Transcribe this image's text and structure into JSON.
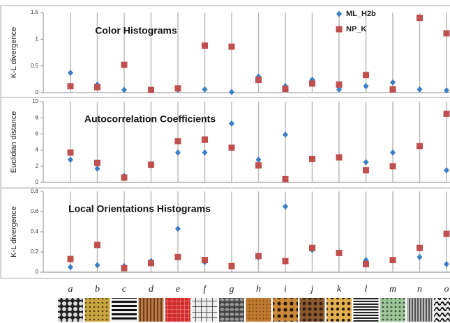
{
  "chart_data": [
    {
      "type": "dot",
      "title": "Color Histograms",
      "y_label": "K-L divergence",
      "legend": "top-right",
      "ylim": [
        0,
        1.5
      ],
      "yticks": [
        0,
        0.5,
        1,
        1.5
      ],
      "series": [
        {
          "name": "ML_H2b",
          "color": "#3b7dc4",
          "marker": "diamond",
          "values": [
            0.37,
            0.15,
            0.05,
            0.05,
            0.05,
            0.06,
            0.01,
            0.3,
            0.12,
            0.24,
            0.06,
            0.12,
            0.19,
            0.06,
            0.04
          ]
        },
        {
          "name": "NP_K",
          "color": "#c0504d",
          "marker": "square",
          "values": [
            0.12,
            0.1,
            0.52,
            0.05,
            0.08,
            0.88,
            0.86,
            0.24,
            0.07,
            0.17,
            0.15,
            0.33,
            0.06,
            1.4,
            1.11
          ]
        }
      ]
    },
    {
      "type": "dot",
      "title": "Autocorrelation Coefficients",
      "y_label": "Euclidian distance",
      "ylim": [
        0,
        10
      ],
      "yticks": [
        0,
        2,
        4,
        6,
        8,
        10
      ],
      "series": [
        {
          "color": "#3b7dc4",
          "marker": "diamond",
          "values": [
            2.8,
            1.7,
            0.8,
            2.1,
            3.7,
            3.7,
            7.3,
            2.8,
            5.9,
            2.9,
            3.1,
            2.5,
            3.7,
            4.5,
            1.5
          ]
        },
        {
          "color": "#c0504d",
          "marker": "square",
          "values": [
            3.7,
            2.4,
            0.6,
            2.2,
            5.1,
            5.3,
            4.3,
            2.1,
            0.4,
            2.9,
            3.1,
            1.5,
            2.0,
            4.5,
            8.5
          ]
        }
      ]
    },
    {
      "type": "dot",
      "title": "Local Orientations Histograms",
      "y_label": "K-L divergence",
      "ylim": [
        0,
        0.8
      ],
      "yticks": [
        0,
        0.2,
        0.4,
        0.6,
        0.8
      ],
      "categories": [
        "a",
        "b",
        "c",
        "d",
        "e",
        "f",
        "g",
        "h",
        "i",
        "j",
        "k",
        "l",
        "m",
        "n",
        "o"
      ],
      "series": [
        {
          "color": "#3b7dc4",
          "marker": "diamond",
          "values": [
            0.05,
            0.07,
            0.06,
            0.11,
            0.43,
            0.1,
            0.06,
            0.15,
            0.65,
            0.22,
            0.19,
            0.12,
            0.12,
            0.15,
            0.08
          ]
        },
        {
          "color": "#c0504d",
          "marker": "square",
          "values": [
            0.13,
            0.27,
            0.04,
            0.09,
            0.15,
            0.12,
            0.06,
            0.16,
            0.11,
            0.24,
            0.19,
            0.08,
            0.12,
            0.24,
            0.38
          ]
        }
      ]
    }
  ]
}
